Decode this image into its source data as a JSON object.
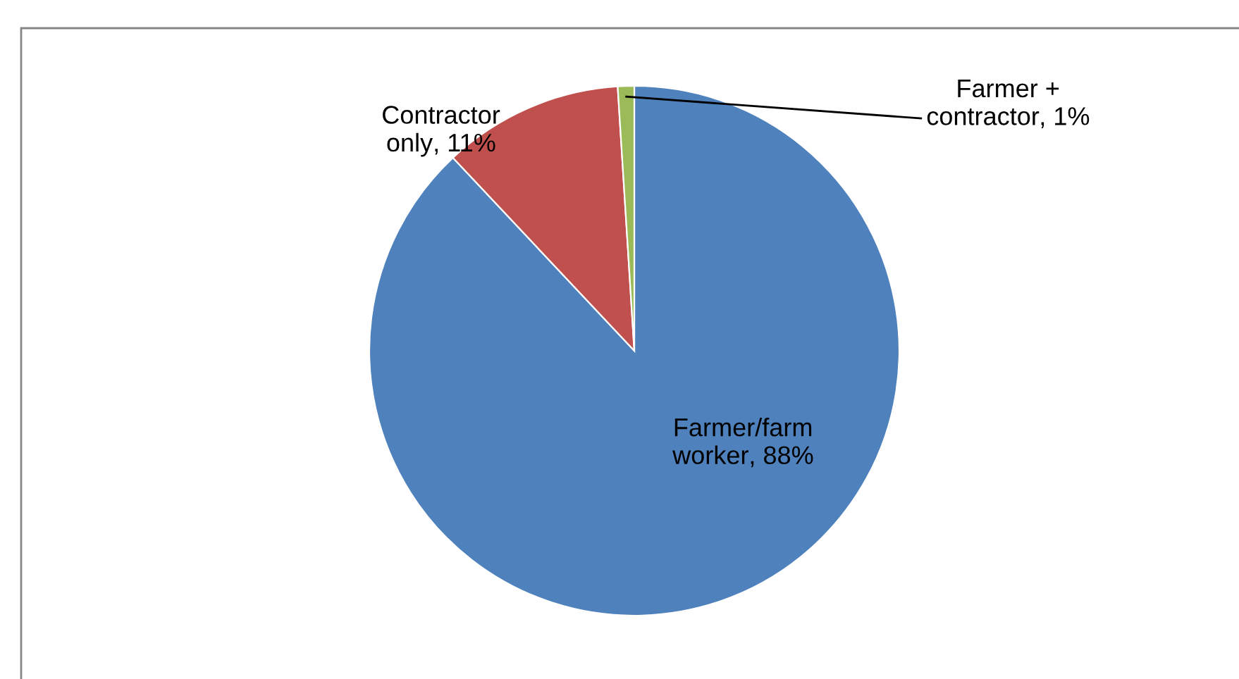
{
  "chart_data": {
    "type": "pie",
    "categories": [
      "Farmer/farm worker",
      "Contractor only",
      "Farmer + contractor"
    ],
    "values": [
      88,
      11,
      1
    ],
    "colors": [
      "#4f81bd",
      "#c0504d",
      "#9bbb59"
    ],
    "value_labels": [
      ", 88%",
      ", 11%",
      ", 1%"
    ],
    "legend": false
  }
}
